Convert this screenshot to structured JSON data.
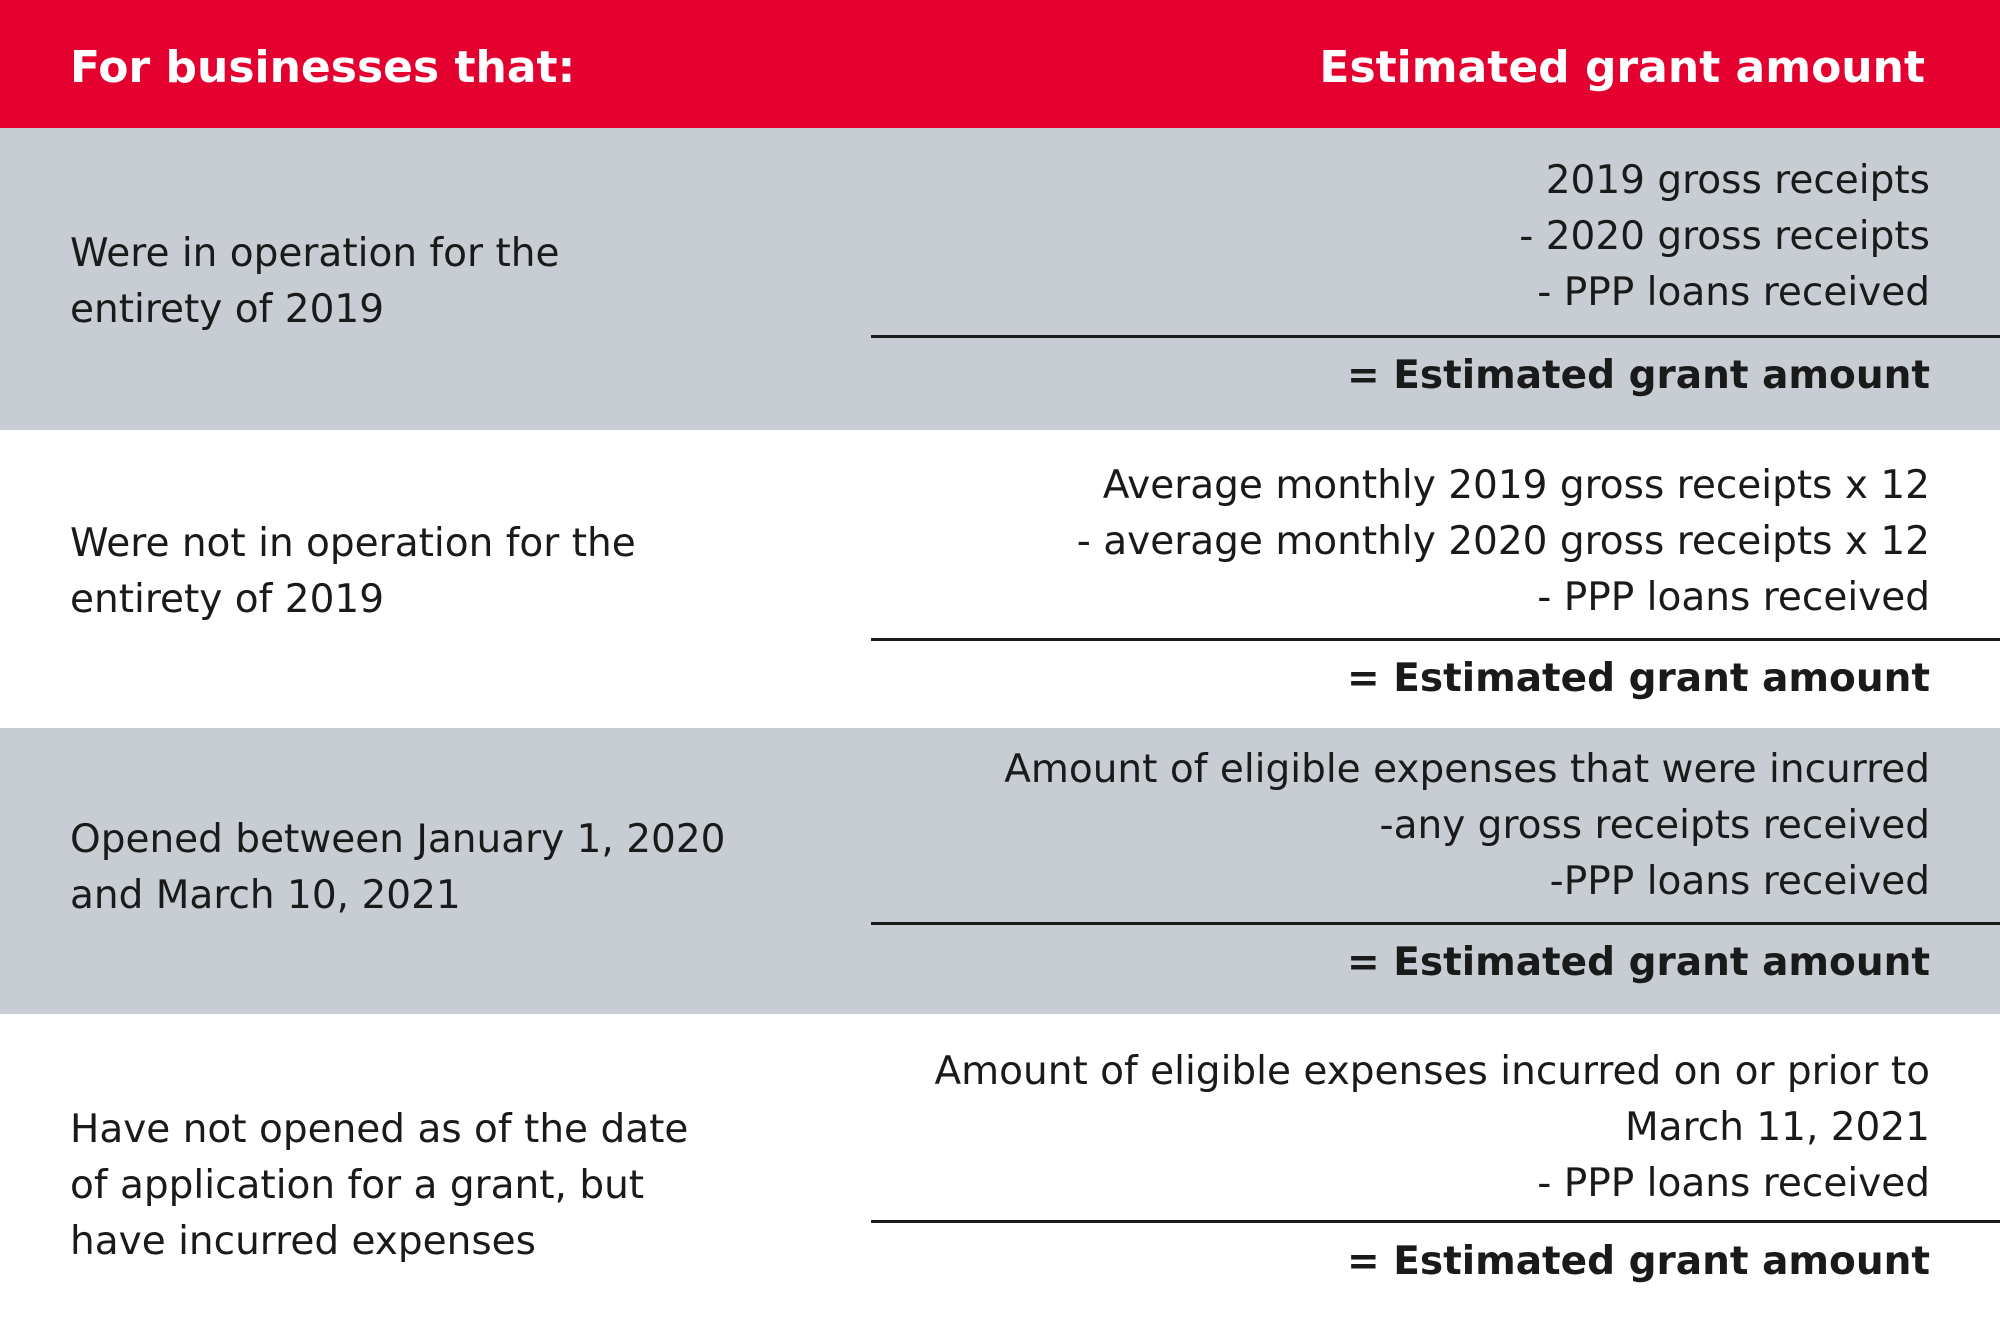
{
  "header": {
    "left_label": "For businesses that:",
    "right_label": "Estimated grant amount"
  },
  "colors": {
    "header_bg": "#e4002f",
    "shaded_row_bg": "#c8cdd3",
    "plain_row_bg": "#ffffff",
    "text": "#1a1a1a"
  },
  "rows": [
    {
      "condition_lines": [
        "Were in operation for the",
        "entirety of 2019"
      ],
      "formula_lines": [
        "2019 gross receipts",
        "- 2020 gross receipts",
        "- PPP loans received"
      ],
      "result": "= Estimated grant amount"
    },
    {
      "condition_lines": [
        "Were not in operation for the",
        "entirety of 2019"
      ],
      "formula_lines": [
        "Average monthly 2019 gross receipts x 12",
        "- average monthly 2020 gross receipts x 12",
        "- PPP loans received"
      ],
      "result": "= Estimated grant amount"
    },
    {
      "condition_lines": [
        "Opened between January 1, 2020",
        "and March 10, 2021"
      ],
      "formula_lines": [
        "Amount of eligible expenses that were incurred",
        "-any gross receipts received",
        "-PPP loans received"
      ],
      "result": "= Estimated grant amount"
    },
    {
      "condition_lines": [
        "Have not opened as of the date",
        "of application for a grant, but",
        "have incurred expenses"
      ],
      "formula_lines": [
        "Amount of eligible expenses incurred on or prior to",
        "March 11, 2021",
        "- PPP loans received"
      ],
      "result": "= Estimated grant amount"
    }
  ]
}
